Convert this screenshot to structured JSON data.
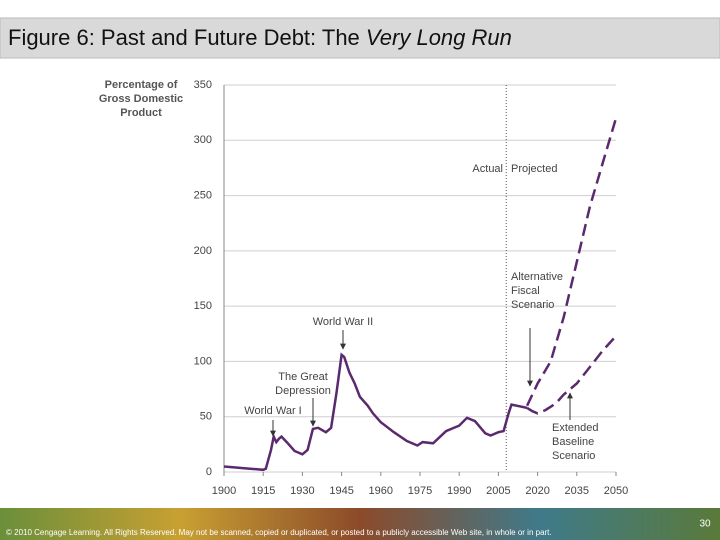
{
  "title": "Figure 6: Past and Future Debt: The",
  "title_emphasis": "Very Long Run",
  "footer": {
    "copyright": "© 2010 Cengage Learning. All Rights Reserved. May not be scanned, copied or duplicated, or posted to a publicly accessible Web site, in whole or in part.",
    "page_number": 30
  },
  "chart_data": {
    "type": "line",
    "y_label": [
      "Percentage of",
      "Gross Domestic",
      "Product"
    ],
    "xlim": [
      1900,
      2050
    ],
    "xticks": [
      1900,
      1915,
      1930,
      1945,
      1960,
      1975,
      1990,
      2005,
      2020,
      2035,
      2050
    ],
    "ylim": [
      0,
      350
    ],
    "yticks": [
      0,
      50,
      100,
      150,
      200,
      250,
      300,
      350
    ],
    "grid": true,
    "actual_projected_divider": 2008,
    "series": [
      {
        "color": "#5b2a6e",
        "dashed": false,
        "x": [
          1900,
          1905,
          1910,
          1915,
          1916,
          1918,
          1919,
          1920,
          1921,
          1922,
          1924,
          1927,
          1930,
          1932,
          1934,
          1936,
          1939,
          1941,
          1943,
          1945,
          1946,
          1948,
          1950,
          1952,
          1955,
          1957,
          1960,
          1965,
          1970,
          1974,
          1976,
          1980,
          1985,
          1990,
          1993,
          1996,
          2000,
          2002,
          2005,
          2007,
          2009,
          2010,
          2012,
          2016
        ],
        "values": [
          5,
          4,
          3,
          2,
          3,
          20,
          32,
          27,
          30,
          32,
          27,
          19,
          16,
          20,
          39,
          40,
          36,
          40,
          71,
          106,
          104,
          90,
          80,
          68,
          60,
          53,
          45,
          36,
          28,
          24,
          27,
          26,
          37,
          42,
          49,
          46,
          35,
          33,
          36,
          37,
          54,
          61,
          60,
          58
        ]
      },
      {
        "color": "#5b2a6e",
        "dashed": true,
        "x": [
          2016,
          2020,
          2025,
          2030,
          2035,
          2040,
          2045,
          2050
        ],
        "values": [
          60,
          80,
          100,
          140,
          190,
          240,
          280,
          320
        ]
      },
      {
        "color": "#5b2a6e",
        "dashed": true,
        "x": [
          2016,
          2018,
          2020,
          2023,
          2027,
          2030,
          2035,
          2040,
          2045,
          2050
        ],
        "values": [
          58,
          55,
          53,
          56,
          62,
          70,
          80,
          95,
          110,
          123
        ]
      }
    ],
    "annotations": [
      {
        "lines": [
          "World War I"
        ]
      },
      {
        "lines": [
          "The Great",
          "Depression"
        ]
      },
      {
        "lines": [
          "World War II"
        ]
      },
      {
        "lines": [
          "Actual"
        ]
      },
      {
        "lines": [
          "Projected"
        ]
      },
      {
        "lines": [
          "Alternative",
          "Fiscal",
          "Scenario"
        ]
      },
      {
        "lines": [
          "Extended",
          "Baseline",
          "Scenario"
        ]
      }
    ]
  }
}
